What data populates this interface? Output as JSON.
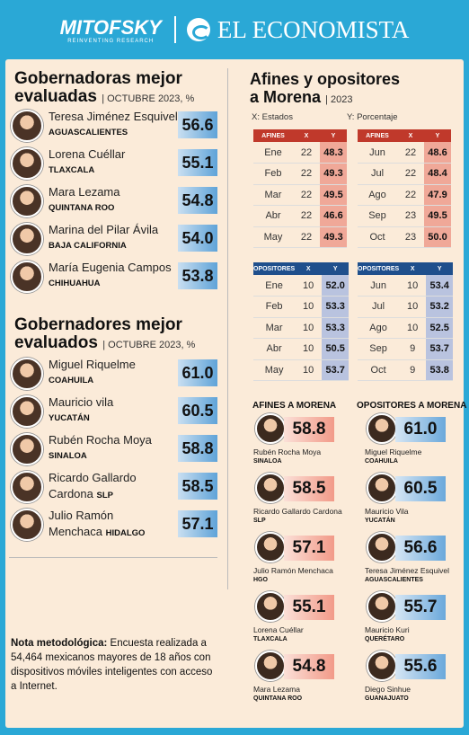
{
  "header": {
    "brand": "MITOFSKY",
    "brand_sub": "REINVENTING RESEARCH",
    "partner": "EL ECONOMISTA"
  },
  "women": {
    "title_line1": "Gobernadoras mejor",
    "title_line2": "evaluadas",
    "subtitle": "| OCTUBRE 2023, %",
    "items": [
      {
        "name": "Teresa Jiménez Esquivel",
        "state": "AGUASCALIENTES",
        "value": "56.6"
      },
      {
        "name": "Lorena Cuéllar",
        "state": "TLAXCALA",
        "value": "55.1"
      },
      {
        "name": "Mara Lezama",
        "state": "QUINTANA ROO",
        "value": "54.8"
      },
      {
        "name": "Marina del Pilar Ávila",
        "state": "BAJA CALIFORNIA",
        "value": "54.0"
      },
      {
        "name": "María Eugenia Campos",
        "state": "CHIHUAHUA",
        "value": "53.8"
      }
    ]
  },
  "men": {
    "title_line1": "Gobernadores mejor",
    "title_line2": "evaluados",
    "subtitle": "| OCTUBRE 2023, %",
    "items": [
      {
        "name": "Miguel Riquelme",
        "state": "COAHUILA",
        "value": "61.0"
      },
      {
        "name": "Mauricio vila",
        "state": "YUCATÁN",
        "value": "60.5"
      },
      {
        "name": "Rubén Rocha Moya",
        "state": "SINALOA",
        "value": "58.8"
      },
      {
        "name1": "Ricardo Gallardo",
        "name2": "Cardona",
        "state": "SLP",
        "value": "58.5"
      },
      {
        "name1": "Julio Ramón",
        "name2": "Menchaca",
        "state": "HIDALGO",
        "value": "57.1"
      }
    ]
  },
  "note": {
    "bold": "Nota metodológica:",
    "text": " Encuesta realizada a 54,464 mexicanos mayores de 18 años con dispositivos móviles inteligentes con acceso a Internet."
  },
  "right": {
    "title_line1": "Afines y opositores",
    "title_line2": "a Morena",
    "subtitle": "| 2023",
    "x_label": "X: Estados",
    "y_label": "Y: Porcentaje",
    "col_x": "X",
    "col_y": "Y",
    "afines_label": "AFINES",
    "opositores_label": "OPOSITORES",
    "afines_left": [
      [
        "Ene",
        "22",
        "48.3"
      ],
      [
        "Feb",
        "22",
        "49.3"
      ],
      [
        "Mar",
        "22",
        "49.5"
      ],
      [
        "Abr",
        "22",
        "46.6"
      ],
      [
        "May",
        "22",
        "49.3"
      ]
    ],
    "afines_right": [
      [
        "Jun",
        "22",
        "48.6"
      ],
      [
        "Jul",
        "22",
        "48.4"
      ],
      [
        "Ago",
        "22",
        "47.9"
      ],
      [
        "Sep",
        "23",
        "49.5"
      ],
      [
        "Oct",
        "23",
        "50.0"
      ]
    ],
    "op_left": [
      [
        "Ene",
        "10",
        "52.0"
      ],
      [
        "Feb",
        "10",
        "53.3"
      ],
      [
        "Mar",
        "10",
        "53.3"
      ],
      [
        "Abr",
        "10",
        "50.5"
      ],
      [
        "May",
        "10",
        "53.7"
      ]
    ],
    "op_right": [
      [
        "Jun",
        "10",
        "53.4"
      ],
      [
        "Jul",
        "10",
        "53.2"
      ],
      [
        "Ago",
        "10",
        "52.5"
      ],
      [
        "Sep",
        "9",
        "53.7"
      ],
      [
        "Oct",
        "9",
        "53.8"
      ]
    ]
  },
  "afines_morena": {
    "title": "AFINES A MORENA",
    "items": [
      {
        "name": "Rubén Rocha Moya",
        "state": "SINALOA",
        "value": "58.8"
      },
      {
        "name": "Ricardo Gallardo Cardona",
        "state": "SLP",
        "value": "58.5"
      },
      {
        "name": "Julio Ramón Menchaca",
        "state": "HGO",
        "value": "57.1"
      },
      {
        "name": "Lorena Cuéllar",
        "state": "TLAXCALA",
        "value": "55.1"
      },
      {
        "name": "Mara Lezama",
        "state": "QUINTANA ROO",
        "value": "54.8"
      }
    ]
  },
  "opositores_morena": {
    "title": "OPOSITORES A MORENA",
    "items": [
      {
        "name": "Miguel Riquelme",
        "state": "COAHUILA",
        "value": "61.0"
      },
      {
        "name": "Mauricio Vila",
        "state": "YUCATÁN",
        "value": "60.5"
      },
      {
        "name": "Teresa Jiménez Esquivel",
        "state": "AGUASCALIENTES",
        "value": "56.6"
      },
      {
        "name": "Mauricio Kuri",
        "state": "QUERÉTARO",
        "value": "55.7"
      },
      {
        "name": "Diego Sinhue",
        "state": "GUANAJUATO",
        "value": "55.6"
      }
    ]
  }
}
